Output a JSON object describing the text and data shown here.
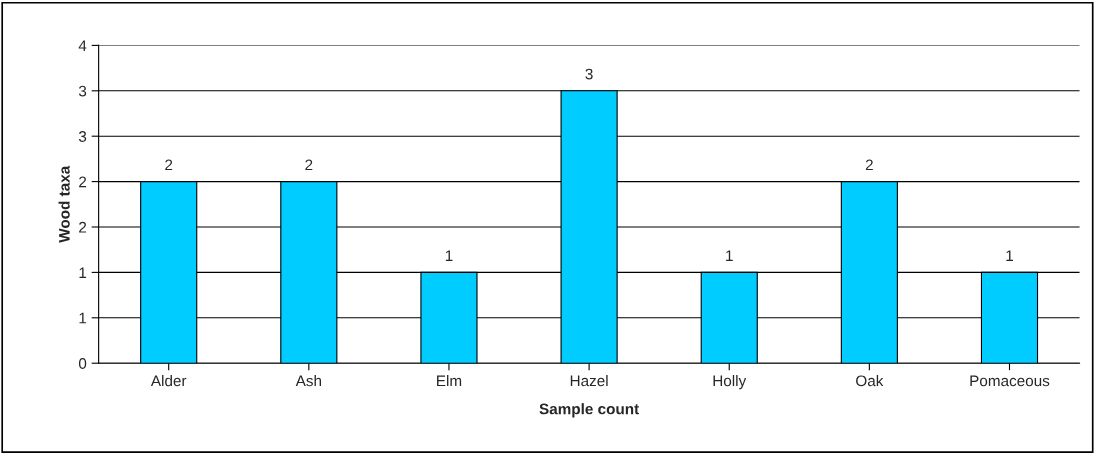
{
  "chart_data": {
    "type": "bar",
    "xlabel": "Sample count",
    "ylabel": "Wood taxa",
    "categories": [
      "Alder",
      "Ash",
      "Elm",
      "Hazel",
      "Holly",
      "Oak",
      "Pomaceous"
    ],
    "values": [
      2,
      2,
      1,
      3,
      1,
      2,
      1
    ],
    "color": "#00ccff",
    "ylim": [
      0,
      3.5
    ],
    "yticks": [
      0,
      {
        "value": 0.5,
        "label": "1"
      },
      1,
      {
        "value": 1.5,
        "label": "2"
      },
      2,
      {
        "value": 2.5,
        "label": "3"
      },
      3,
      {
        "value": 3.5,
        "label": "4"
      }
    ],
    "grid": "y",
    "data_labels": true,
    "legend": false
  }
}
